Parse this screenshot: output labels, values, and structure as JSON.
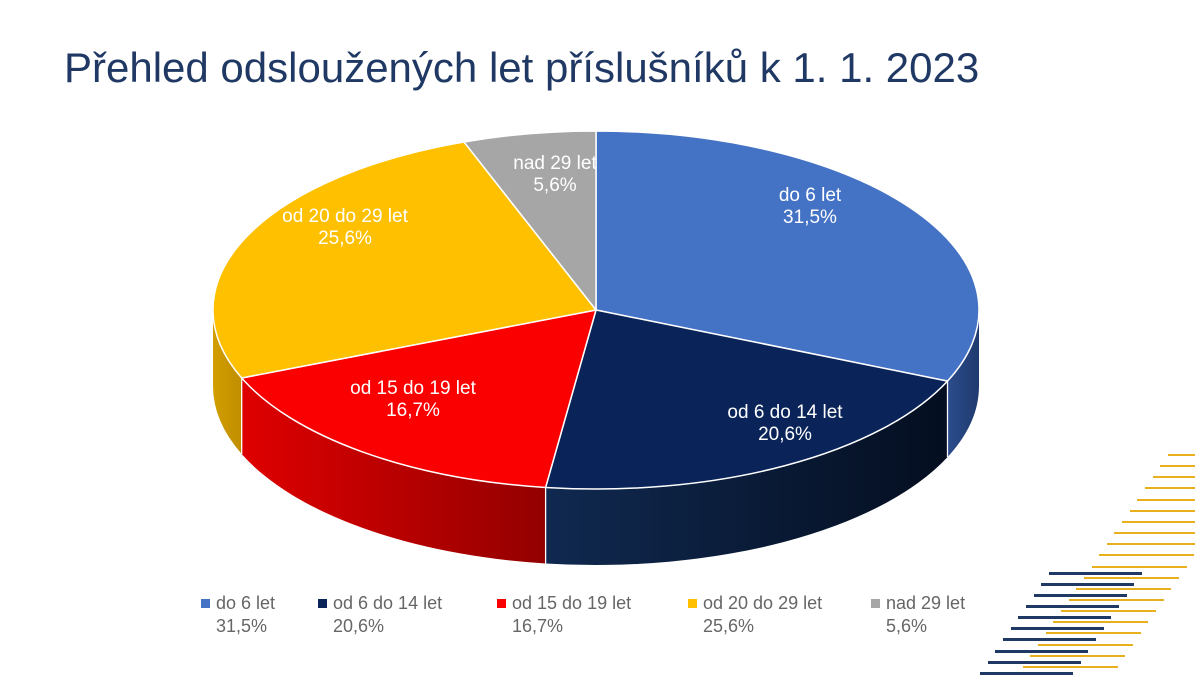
{
  "title": "Přehled odsloužených let příslušníků k 1. 1. 2023",
  "chart_data": {
    "type": "pie",
    "three_d": true,
    "title": "Přehled odsloužených let příslušníků k 1. 1. 2023",
    "start_angle_deg": 0,
    "direction": "clockwise",
    "legend_position": "bottom",
    "data_labels": "category-name and percent, two lines, inside slices",
    "slices": [
      {
        "label": "do 6 let",
        "value_pct": 31.5,
        "pct_display": "31,5%",
        "color": "#4472C4",
        "side_from": "#2B4C8C",
        "side_to": "#1F3A6E"
      },
      {
        "label": "od 6 do 14 let",
        "value_pct": 20.6,
        "pct_display": "20,6%",
        "color": "#0A2459",
        "side_from": "#102950",
        "side_to": "#040E20"
      },
      {
        "label": "od 15 do 19 let",
        "value_pct": 16.7,
        "pct_display": "16,7%",
        "color": "#FB0000",
        "side_from": "#DF0000",
        "side_to": "#930000"
      },
      {
        "label": "od 20 do 29 let",
        "value_pct": 25.6,
        "pct_display": "25,6%",
        "color": "#FFC000",
        "side_from": "#D29E00",
        "side_to": "#C08E00"
      },
      {
        "label": "nad 29 let",
        "value_pct": 5.6,
        "pct_display": "5,6%",
        "color": "#A6A6A6",
        "side_from": "#8C8C8C",
        "side_to": "#7A7A7A"
      }
    ]
  },
  "colors": {
    "background": "#FFFFFF",
    "title_text": "#1F3864",
    "slice_label_text": "#FFFFFF",
    "slice_border": "#FFFFFF",
    "legend_text": "#666666",
    "decor_yellow": "#E9B01D",
    "decor_navy": "#1F3864"
  }
}
